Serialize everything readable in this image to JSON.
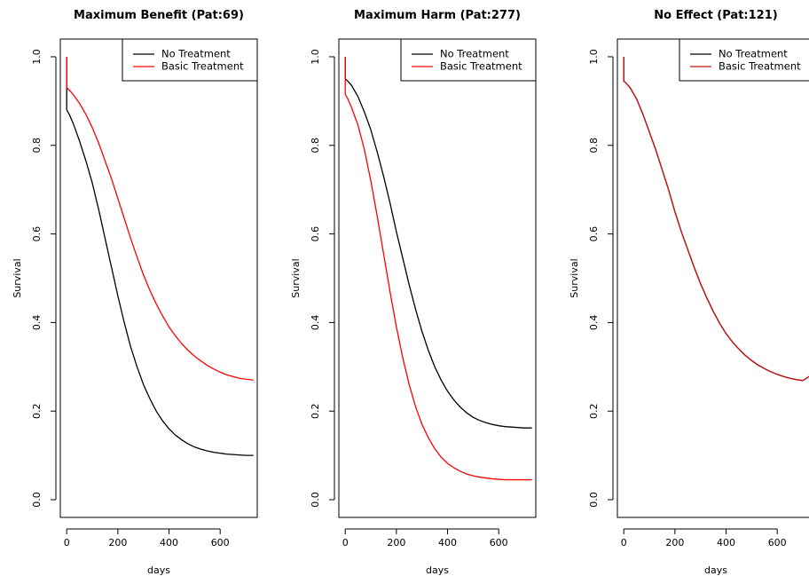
{
  "chart_data": [
    {
      "type": "line",
      "title": "Maximum Benefit (Pat:69)",
      "xlabel": "days",
      "ylabel": "Survival",
      "xlim": [
        -25,
        745
      ],
      "ylim": [
        -0.04,
        1.04
      ],
      "xticks": [
        "0",
        "200",
        "400",
        "600"
      ],
      "yticks": [
        "0.0",
        "0.2",
        "0.4",
        "0.6",
        "0.8",
        "1.0"
      ],
      "legend_position": "top-right",
      "series": [
        {
          "name": "No Treatment",
          "color": "#000000",
          "x": [
            0,
            0,
            0,
            10,
            25,
            50,
            75,
            100,
            125,
            150,
            175,
            200,
            225,
            250,
            275,
            300,
            325,
            350,
            375,
            400,
            425,
            450,
            475,
            500,
            525,
            550,
            575,
            600,
            625,
            650,
            675,
            700,
            730
          ],
          "y": [
            1.0,
            0.88,
            0.88,
            0.87,
            0.85,
            0.81,
            0.765,
            0.715,
            0.655,
            0.59,
            0.525,
            0.46,
            0.4,
            0.345,
            0.3,
            0.26,
            0.228,
            0.2,
            0.178,
            0.16,
            0.146,
            0.135,
            0.126,
            0.119,
            0.114,
            0.11,
            0.107,
            0.105,
            0.103,
            0.102,
            0.101,
            0.1,
            0.1
          ]
        },
        {
          "name": "Basic Treatment",
          "color": "#ff0000",
          "x": [
            0,
            0,
            0,
            10,
            25,
            50,
            75,
            100,
            125,
            150,
            175,
            200,
            225,
            250,
            275,
            300,
            325,
            350,
            375,
            400,
            425,
            450,
            475,
            500,
            525,
            550,
            575,
            600,
            625,
            650,
            675,
            700,
            730
          ],
          "y": [
            1.0,
            0.93,
            0.93,
            0.925,
            0.915,
            0.895,
            0.87,
            0.84,
            0.805,
            0.765,
            0.725,
            0.68,
            0.635,
            0.59,
            0.548,
            0.508,
            0.473,
            0.442,
            0.415,
            0.39,
            0.37,
            0.352,
            0.337,
            0.324,
            0.313,
            0.303,
            0.295,
            0.288,
            0.282,
            0.278,
            0.274,
            0.272,
            0.27
          ]
        }
      ]
    },
    {
      "type": "line",
      "title": "Maximum Harm (Pat:277)",
      "xlabel": "days",
      "ylabel": "Survival",
      "xlim": [
        -25,
        745
      ],
      "ylim": [
        -0.04,
        1.04
      ],
      "xticks": [
        "0",
        "200",
        "400",
        "600"
      ],
      "yticks": [
        "0.0",
        "0.2",
        "0.4",
        "0.6",
        "0.8",
        "1.0"
      ],
      "legend_position": "top-right",
      "series": [
        {
          "name": "No Treatment",
          "color": "#000000",
          "x": [
            0,
            0,
            0,
            10,
            25,
            50,
            75,
            100,
            125,
            150,
            175,
            200,
            225,
            250,
            275,
            300,
            325,
            350,
            375,
            400,
            425,
            450,
            475,
            500,
            525,
            550,
            575,
            600,
            625,
            650,
            675,
            700,
            730
          ],
          "y": [
            1.0,
            0.95,
            0.95,
            0.945,
            0.935,
            0.91,
            0.875,
            0.835,
            0.785,
            0.73,
            0.67,
            0.605,
            0.545,
            0.485,
            0.43,
            0.38,
            0.337,
            0.3,
            0.27,
            0.245,
            0.225,
            0.209,
            0.196,
            0.186,
            0.179,
            0.174,
            0.17,
            0.167,
            0.165,
            0.164,
            0.163,
            0.162,
            0.162
          ]
        },
        {
          "name": "Basic Treatment",
          "color": "#ff0000",
          "x": [
            0,
            0,
            0,
            10,
            25,
            50,
            75,
            100,
            125,
            150,
            175,
            200,
            225,
            250,
            275,
            300,
            325,
            350,
            375,
            400,
            425,
            450,
            475,
            500,
            525,
            550,
            575,
            600,
            625,
            650,
            675,
            700,
            730
          ],
          "y": [
            1.0,
            0.915,
            0.915,
            0.905,
            0.885,
            0.845,
            0.79,
            0.72,
            0.64,
            0.555,
            0.47,
            0.39,
            0.32,
            0.26,
            0.21,
            0.17,
            0.14,
            0.115,
            0.096,
            0.082,
            0.072,
            0.064,
            0.058,
            0.054,
            0.051,
            0.049,
            0.047,
            0.046,
            0.045,
            0.045,
            0.045,
            0.045,
            0.045
          ]
        }
      ]
    },
    {
      "type": "line",
      "title": "No Effect (Pat:121)",
      "xlabel": "days",
      "ylabel": "Survival",
      "xlim": [
        -25,
        745
      ],
      "ylim": [
        -0.04,
        1.04
      ],
      "xticks": [
        "0",
        "200",
        "400",
        "600"
      ],
      "yticks": [
        "0.0",
        "0.2",
        "0.4",
        "0.6",
        "0.8",
        "1.0"
      ],
      "legend_position": "top-right",
      "series": [
        {
          "name": "No Treatment",
          "color": "#000000",
          "x": [
            0,
            0,
            0,
            10,
            25,
            50,
            75,
            100,
            125,
            150,
            175,
            200,
            225,
            250,
            275,
            300,
            325,
            350,
            375,
            400,
            425,
            450,
            475,
            500,
            525,
            550,
            575,
            600,
            625,
            650,
            675,
            700,
            730
          ],
          "y": [
            1.0,
            0.945,
            0.945,
            0.94,
            0.93,
            0.905,
            0.87,
            0.83,
            0.79,
            0.745,
            0.7,
            0.65,
            0.605,
            0.565,
            0.525,
            0.488,
            0.455,
            0.425,
            0.398,
            0.375,
            0.356,
            0.34,
            0.326,
            0.314,
            0.304,
            0.296,
            0.289,
            0.283,
            0.278,
            0.274,
            0.271,
            0.269,
            0.28
          ]
        },
        {
          "name": "Basic Treatment",
          "color": "#cc1111",
          "x": [
            0,
            0,
            0,
            10,
            25,
            50,
            75,
            100,
            125,
            150,
            175,
            200,
            225,
            250,
            275,
            300,
            325,
            350,
            375,
            400,
            425,
            450,
            475,
            500,
            525,
            550,
            575,
            600,
            625,
            650,
            675,
            700,
            730
          ],
          "y": [
            1.0,
            0.945,
            0.945,
            0.94,
            0.93,
            0.905,
            0.87,
            0.83,
            0.79,
            0.745,
            0.7,
            0.65,
            0.605,
            0.565,
            0.525,
            0.488,
            0.455,
            0.425,
            0.398,
            0.375,
            0.356,
            0.34,
            0.326,
            0.314,
            0.304,
            0.296,
            0.289,
            0.283,
            0.278,
            0.274,
            0.271,
            0.269,
            0.28
          ]
        }
      ]
    }
  ]
}
